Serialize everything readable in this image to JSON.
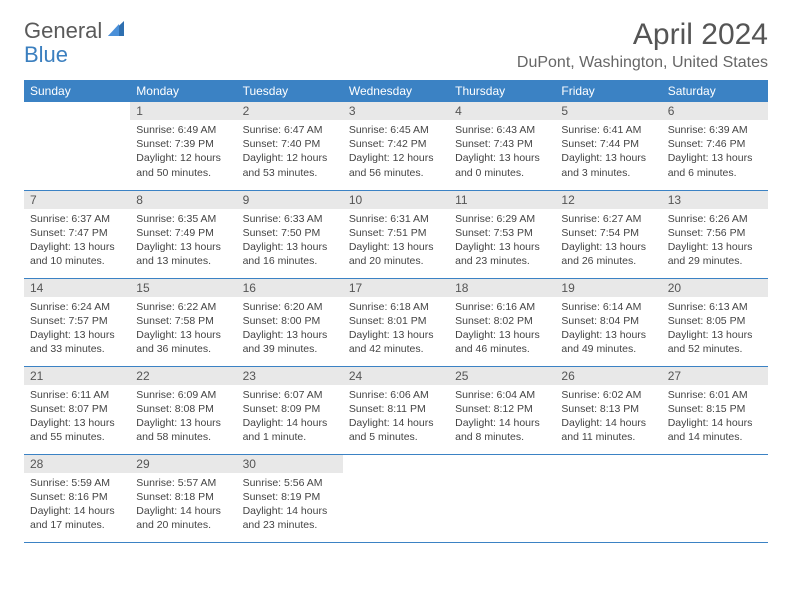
{
  "logo": {
    "word1": "General",
    "word2": "Blue"
  },
  "title": "April 2024",
  "location": "DuPont, Washington, United States",
  "colors": {
    "header_bg": "#3b82c4",
    "header_text": "#ffffff",
    "daynum_bg": "#e8e8e8",
    "rule": "#3b82c4",
    "logo_gray": "#5a5a5a",
    "logo_blue": "#3b7fbf"
  },
  "day_names": [
    "Sunday",
    "Monday",
    "Tuesday",
    "Wednesday",
    "Thursday",
    "Friday",
    "Saturday"
  ],
  "weeks": [
    [
      {
        "n": "",
        "sr": "",
        "ss": "",
        "dl": ""
      },
      {
        "n": "1",
        "sr": "Sunrise: 6:49 AM",
        "ss": "Sunset: 7:39 PM",
        "dl": "Daylight: 12 hours and 50 minutes."
      },
      {
        "n": "2",
        "sr": "Sunrise: 6:47 AM",
        "ss": "Sunset: 7:40 PM",
        "dl": "Daylight: 12 hours and 53 minutes."
      },
      {
        "n": "3",
        "sr": "Sunrise: 6:45 AM",
        "ss": "Sunset: 7:42 PM",
        "dl": "Daylight: 12 hours and 56 minutes."
      },
      {
        "n": "4",
        "sr": "Sunrise: 6:43 AM",
        "ss": "Sunset: 7:43 PM",
        "dl": "Daylight: 13 hours and 0 minutes."
      },
      {
        "n": "5",
        "sr": "Sunrise: 6:41 AM",
        "ss": "Sunset: 7:44 PM",
        "dl": "Daylight: 13 hours and 3 minutes."
      },
      {
        "n": "6",
        "sr": "Sunrise: 6:39 AM",
        "ss": "Sunset: 7:46 PM",
        "dl": "Daylight: 13 hours and 6 minutes."
      }
    ],
    [
      {
        "n": "7",
        "sr": "Sunrise: 6:37 AM",
        "ss": "Sunset: 7:47 PM",
        "dl": "Daylight: 13 hours and 10 minutes."
      },
      {
        "n": "8",
        "sr": "Sunrise: 6:35 AM",
        "ss": "Sunset: 7:49 PM",
        "dl": "Daylight: 13 hours and 13 minutes."
      },
      {
        "n": "9",
        "sr": "Sunrise: 6:33 AM",
        "ss": "Sunset: 7:50 PM",
        "dl": "Daylight: 13 hours and 16 minutes."
      },
      {
        "n": "10",
        "sr": "Sunrise: 6:31 AM",
        "ss": "Sunset: 7:51 PM",
        "dl": "Daylight: 13 hours and 20 minutes."
      },
      {
        "n": "11",
        "sr": "Sunrise: 6:29 AM",
        "ss": "Sunset: 7:53 PM",
        "dl": "Daylight: 13 hours and 23 minutes."
      },
      {
        "n": "12",
        "sr": "Sunrise: 6:27 AM",
        "ss": "Sunset: 7:54 PM",
        "dl": "Daylight: 13 hours and 26 minutes."
      },
      {
        "n": "13",
        "sr": "Sunrise: 6:26 AM",
        "ss": "Sunset: 7:56 PM",
        "dl": "Daylight: 13 hours and 29 minutes."
      }
    ],
    [
      {
        "n": "14",
        "sr": "Sunrise: 6:24 AM",
        "ss": "Sunset: 7:57 PM",
        "dl": "Daylight: 13 hours and 33 minutes."
      },
      {
        "n": "15",
        "sr": "Sunrise: 6:22 AM",
        "ss": "Sunset: 7:58 PM",
        "dl": "Daylight: 13 hours and 36 minutes."
      },
      {
        "n": "16",
        "sr": "Sunrise: 6:20 AM",
        "ss": "Sunset: 8:00 PM",
        "dl": "Daylight: 13 hours and 39 minutes."
      },
      {
        "n": "17",
        "sr": "Sunrise: 6:18 AM",
        "ss": "Sunset: 8:01 PM",
        "dl": "Daylight: 13 hours and 42 minutes."
      },
      {
        "n": "18",
        "sr": "Sunrise: 6:16 AM",
        "ss": "Sunset: 8:02 PM",
        "dl": "Daylight: 13 hours and 46 minutes."
      },
      {
        "n": "19",
        "sr": "Sunrise: 6:14 AM",
        "ss": "Sunset: 8:04 PM",
        "dl": "Daylight: 13 hours and 49 minutes."
      },
      {
        "n": "20",
        "sr": "Sunrise: 6:13 AM",
        "ss": "Sunset: 8:05 PM",
        "dl": "Daylight: 13 hours and 52 minutes."
      }
    ],
    [
      {
        "n": "21",
        "sr": "Sunrise: 6:11 AM",
        "ss": "Sunset: 8:07 PM",
        "dl": "Daylight: 13 hours and 55 minutes."
      },
      {
        "n": "22",
        "sr": "Sunrise: 6:09 AM",
        "ss": "Sunset: 8:08 PM",
        "dl": "Daylight: 13 hours and 58 minutes."
      },
      {
        "n": "23",
        "sr": "Sunrise: 6:07 AM",
        "ss": "Sunset: 8:09 PM",
        "dl": "Daylight: 14 hours and 1 minute."
      },
      {
        "n": "24",
        "sr": "Sunrise: 6:06 AM",
        "ss": "Sunset: 8:11 PM",
        "dl": "Daylight: 14 hours and 5 minutes."
      },
      {
        "n": "25",
        "sr": "Sunrise: 6:04 AM",
        "ss": "Sunset: 8:12 PM",
        "dl": "Daylight: 14 hours and 8 minutes."
      },
      {
        "n": "26",
        "sr": "Sunrise: 6:02 AM",
        "ss": "Sunset: 8:13 PM",
        "dl": "Daylight: 14 hours and 11 minutes."
      },
      {
        "n": "27",
        "sr": "Sunrise: 6:01 AM",
        "ss": "Sunset: 8:15 PM",
        "dl": "Daylight: 14 hours and 14 minutes."
      }
    ],
    [
      {
        "n": "28",
        "sr": "Sunrise: 5:59 AM",
        "ss": "Sunset: 8:16 PM",
        "dl": "Daylight: 14 hours and 17 minutes."
      },
      {
        "n": "29",
        "sr": "Sunrise: 5:57 AM",
        "ss": "Sunset: 8:18 PM",
        "dl": "Daylight: 14 hours and 20 minutes."
      },
      {
        "n": "30",
        "sr": "Sunrise: 5:56 AM",
        "ss": "Sunset: 8:19 PM",
        "dl": "Daylight: 14 hours and 23 minutes."
      },
      {
        "n": "",
        "sr": "",
        "ss": "",
        "dl": ""
      },
      {
        "n": "",
        "sr": "",
        "ss": "",
        "dl": ""
      },
      {
        "n": "",
        "sr": "",
        "ss": "",
        "dl": ""
      },
      {
        "n": "",
        "sr": "",
        "ss": "",
        "dl": ""
      }
    ]
  ]
}
